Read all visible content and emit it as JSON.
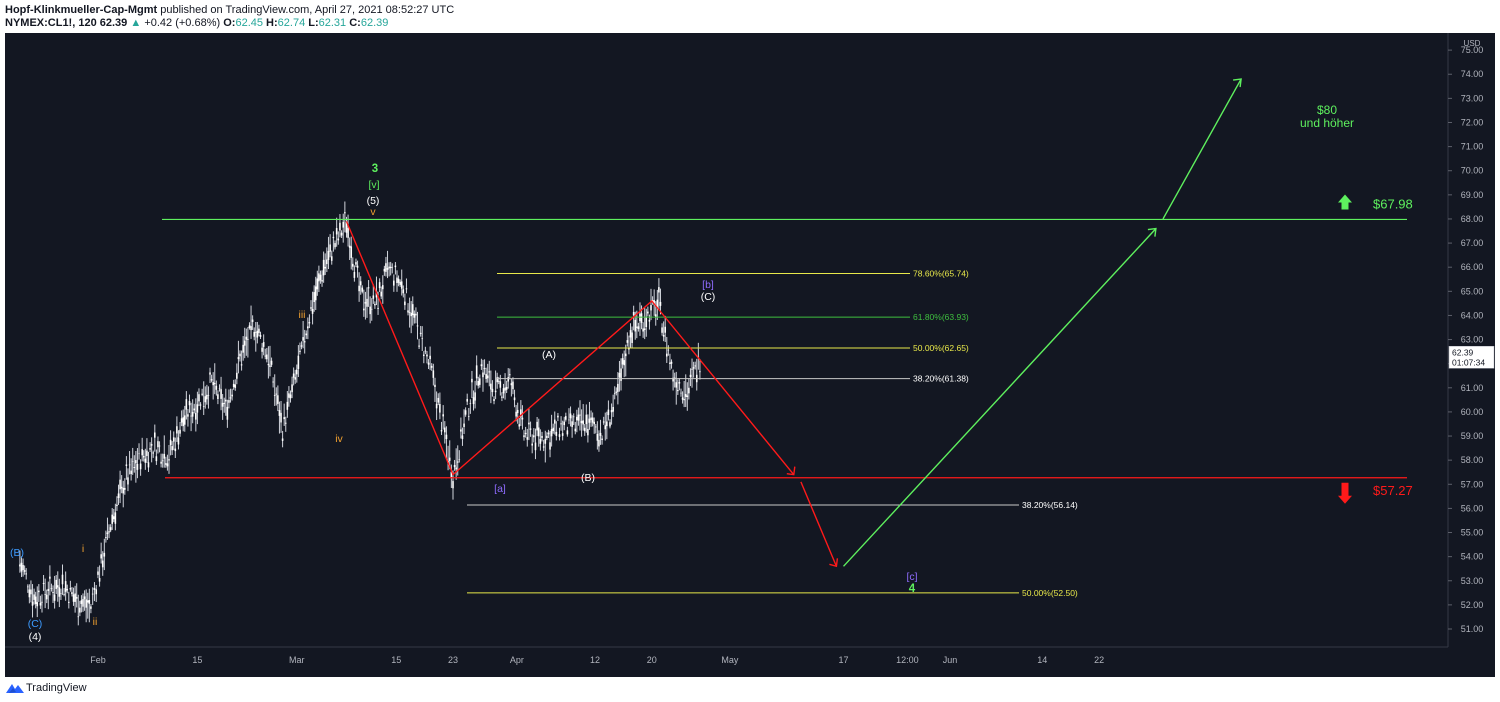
{
  "header": {
    "author": "Hopf-Klinkmueller-Cap-Mgmt",
    "published": "published on TradingView.com, April 27, 2021 08:52:27 UTC",
    "symbol": "NYMEX:CL1!, 120",
    "last": "62.39",
    "change": "+0.42 (+0.68%)",
    "o_label": "O:",
    "o": "62.45",
    "h_label": "H:",
    "h": "62.74",
    "l_label": "L:",
    "l": "62.31",
    "c_label": "C:",
    "c": "62.39"
  },
  "footer": {
    "brand": "TradingView"
  },
  "colors": {
    "background": "#131722",
    "candles": "#d1d4dc",
    "red": "#ff1a1a",
    "green": "#5ef05e",
    "fib_yellow": "#e8e84a",
    "fib_green": "#3fbf3f",
    "fib_white": "#c8c8c8",
    "wave_orange": "#f0a030",
    "wave_purple": "#8f6cff",
    "wave_blue": "#3d9bff"
  },
  "chart_data": {
    "type": "line",
    "title": "",
    "xlabel": "",
    "ylabel": "",
    "currency": "USD",
    "ylim": [
      50.2,
      75.8
    ],
    "x_axis_ticks": [
      "Feb",
      "15",
      "Mar",
      "15",
      "23",
      "Apr",
      "12",
      "20",
      "May",
      "17",
      "12:00",
      "Jun",
      "14",
      "22"
    ],
    "x_axis_tick_dates": [
      "2021-02-01",
      "2021-02-15",
      "2021-03-01",
      "2021-03-15",
      "2021-03-23",
      "2021-04-01",
      "2021-04-12",
      "2021-04-20",
      "2021-05-01",
      "2021-05-17",
      "2021-05-26",
      "2021-06-01",
      "2021-06-14",
      "2021-06-22"
    ],
    "y_axis_ticks": [
      "51.00",
      "52.00",
      "53.00",
      "54.00",
      "55.00",
      "56.00",
      "57.00",
      "58.00",
      "59.00",
      "60.00",
      "61.00",
      "62.00",
      "63.00",
      "64.00",
      "65.00",
      "66.00",
      "67.00",
      "68.00",
      "69.00",
      "70.00",
      "71.00",
      "72.00",
      "73.00",
      "74.00",
      "75.00"
    ],
    "last_price_label": {
      "price": "62.39",
      "countdown": "01:07:34"
    },
    "price_path": {
      "dates": [
        "2021-01-21",
        "2021-01-23",
        "2021-01-25",
        "2021-01-27",
        "2021-01-29",
        "2021-01-31",
        "2021-02-01",
        "2021-02-03",
        "2021-02-05",
        "2021-02-07",
        "2021-02-09",
        "2021-02-11",
        "2021-02-13",
        "2021-02-15",
        "2021-02-17",
        "2021-02-19",
        "2021-02-21",
        "2021-02-23",
        "2021-02-25",
        "2021-02-27",
        "2021-03-01",
        "2021-03-03",
        "2021-03-05",
        "2021-03-08",
        "2021-03-10",
        "2021-03-12",
        "2021-03-14",
        "2021-03-16",
        "2021-03-18",
        "2021-03-20",
        "2021-03-23",
        "2021-03-25",
        "2021-03-27",
        "2021-03-29",
        "2021-03-31",
        "2021-04-02",
        "2021-04-05",
        "2021-04-07",
        "2021-04-09",
        "2021-04-11",
        "2021-04-13",
        "2021-04-15",
        "2021-04-17",
        "2021-04-19",
        "2021-04-21",
        "2021-04-23",
        "2021-04-25",
        "2021-04-27"
      ],
      "values": [
        53.8,
        52.3,
        52.6,
        52.9,
        52.2,
        51.9,
        53.2,
        55.6,
        57.3,
        58.1,
        58.6,
        58.2,
        59.7,
        60.4,
        61.2,
        60.1,
        62.2,
        63.6,
        62.3,
        59.3,
        61.6,
        64.3,
        66.2,
        67.9,
        64.8,
        64.5,
        65.9,
        65.2,
        63.4,
        61.6,
        57.4,
        60.1,
        61.9,
        60.8,
        61.3,
        59.1,
        58.9,
        59.4,
        59.4,
        59.6,
        59.1,
        60.5,
        63.4,
        63.9,
        64.5,
        61.5,
        60.8,
        62.39
      ]
    },
    "horizontal_lines": [
      {
        "value": 67.98,
        "label": "$67.98",
        "color": "#5ef05e",
        "arrow": "up"
      },
      {
        "value": 57.27,
        "label": "$57.27",
        "color": "#ff1a1a",
        "arrow": "down"
      }
    ],
    "fib_levels": [
      {
        "pct": "78.60%",
        "value": 65.74,
        "label": "78.60%(65.74)",
        "color": "#e8e84a"
      },
      {
        "pct": "61.80%",
        "value": 63.93,
        "label": "61.80%(63.93)",
        "color": "#3fbf3f"
      },
      {
        "pct": "50.00%",
        "value": 62.65,
        "label": "50.00%(62.65)",
        "color": "#e8e84a"
      },
      {
        "pct": "38.20%",
        "value": 61.38,
        "label": "38.20%(61.38)",
        "color": "#c8c8c8"
      },
      {
        "pct": "38.20%",
        "value": 56.14,
        "label": "38.20%(56.14)",
        "color": "#c8c8c8"
      },
      {
        "pct": "50.00%",
        "value": 52.5,
        "label": "50.00%(52.50)",
        "color": "#e8e84a"
      }
    ],
    "wave_labels": [
      {
        "text": "3",
        "color": "#5ef05e",
        "bold": true
      },
      {
        "text": "[v]",
        "color": "#5ef05e"
      },
      {
        "text": "(5)",
        "color": "#ffffff"
      },
      {
        "text": "v",
        "color": "#f0a030"
      },
      {
        "text": "iii",
        "color": "#f0a030"
      },
      {
        "text": "iv",
        "color": "#f0a030"
      },
      {
        "text": "i",
        "color": "#f0a030"
      },
      {
        "text": "ii",
        "color": "#f0a030"
      },
      {
        "text": "(B)",
        "color": "#3d9bff"
      },
      {
        "text": "(C)",
        "color": "#3d9bff"
      },
      {
        "text": "(4)",
        "color": "#ffffff"
      },
      {
        "text": "[a]",
        "color": "#8f6cff"
      },
      {
        "text": "(A)",
        "color": "#ffffff"
      },
      {
        "text": "(B)",
        "color": "#ffffff"
      },
      {
        "text": "[b]",
        "color": "#8f6cff"
      },
      {
        "text": "(C)",
        "color": "#ffffff"
      },
      {
        "text": "[c]",
        "color": "#8f6cff"
      },
      {
        "text": "4",
        "color": "#5ef05e",
        "bold": true
      }
    ],
    "annotation": {
      "line1": "$80",
      "line2": "und höher",
      "color": "#5ef05e"
    },
    "red_zigzag": {
      "dates": [
        "2021-03-08",
        "2021-03-23",
        "2021-04-20",
        "2021-05-10"
      ],
      "values": [
        67.9,
        57.4,
        64.6,
        57.4
      ]
    },
    "red_projection": {
      "dates": [
        "2021-05-11",
        "2021-05-16"
      ],
      "values": [
        57.1,
        53.6
      ]
    },
    "green_projection": [
      {
        "dates": [
          "2021-05-17",
          "2021-06-30"
        ],
        "values": [
          53.6,
          67.6
        ]
      },
      {
        "dates": [
          "2021-07-01",
          "2021-07-12"
        ],
        "values": [
          68.0,
          73.8
        ]
      }
    ]
  }
}
